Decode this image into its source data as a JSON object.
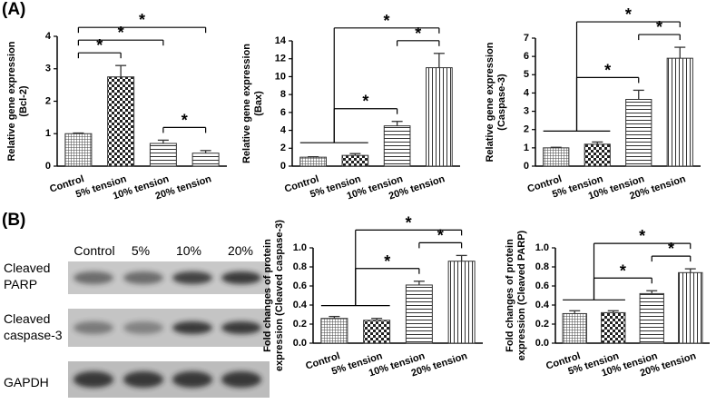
{
  "panels": [
    "(A)",
    "(B)"
  ],
  "blot": {
    "lanes": [
      "Control",
      "5%",
      "10%",
      "20%"
    ],
    "rows": [
      [
        "Cleaved",
        "PARP"
      ],
      [
        "Cleaved",
        "caspase-3"
      ],
      [
        "GAPDH"
      ]
    ]
  },
  "chart_data": [
    {
      "type": "bar",
      "ylabel": [
        "Relative gene expression",
        "(Bcl-2)"
      ],
      "categories": [
        "Control",
        "5% tension",
        "10% tension",
        "20% tension"
      ],
      "values": [
        1.0,
        2.75,
        0.7,
        0.4
      ],
      "errors": [
        0.02,
        0.35,
        0.1,
        0.08
      ],
      "patterns": [
        "grid",
        "checker",
        "hlines",
        "hlines"
      ],
      "color": "#333333",
      "ylim": [
        0,
        4
      ],
      "yticks": [
        0,
        1,
        2,
        3,
        4
      ],
      "comparisons": [
        {
          "from": 2,
          "to": 3,
          "label": "*"
        },
        {
          "from": 0,
          "to": 1,
          "label": "*"
        },
        {
          "from": 0,
          "to": 2,
          "label": "*"
        },
        {
          "from": 0,
          "to": 3,
          "label": "*"
        }
      ]
    },
    {
      "type": "bar",
      "ylabel": [
        "Relative gene expression",
        "(Bax)"
      ],
      "categories": [
        "Control",
        "5% tension",
        "10% tension",
        "20% tension"
      ],
      "values": [
        1.0,
        1.2,
        4.5,
        11.0
      ],
      "errors": [
        0.05,
        0.2,
        0.5,
        1.6
      ],
      "patterns": [
        "grid",
        "checker",
        "hlines",
        "vlines"
      ],
      "color": "#333333",
      "ylim": [
        0,
        14
      ],
      "yticks": [
        0,
        2,
        4,
        6,
        8,
        10,
        12,
        14
      ],
      "comparisons": [
        {
          "from": [
            0,
            1
          ],
          "to": 2,
          "label": "*"
        },
        {
          "from": 2,
          "to": 3,
          "label": "*"
        },
        {
          "from": [
            0,
            1
          ],
          "to": 3,
          "label": "*"
        }
      ]
    },
    {
      "type": "bar",
      "ylabel": [
        "Relative gene expression",
        "(Caspase-3)"
      ],
      "categories": [
        "Control",
        "5% tension",
        "10% tension",
        "20% tension"
      ],
      "values": [
        1.0,
        1.2,
        3.65,
        5.9
      ],
      "errors": [
        0.03,
        0.12,
        0.5,
        0.6
      ],
      "patterns": [
        "grid",
        "checker",
        "hlines",
        "vlines"
      ],
      "color": "#333333",
      "ylim": [
        0,
        7
      ],
      "yticks": [
        0,
        1,
        2,
        3,
        4,
        5,
        6,
        7
      ],
      "comparisons": [
        {
          "from": [
            0,
            1
          ],
          "to": 2,
          "label": "*"
        },
        {
          "from": 2,
          "to": 3,
          "label": "*"
        },
        {
          "from": [
            0,
            1
          ],
          "to": 3,
          "label": "*"
        }
      ]
    },
    {
      "type": "bar",
      "ylabel": [
        "Fold changes of protein",
        "expression (Cleaved caspase-3)"
      ],
      "categories": [
        "Control",
        "5% tension",
        "10% tension",
        "20% tension"
      ],
      "values": [
        0.26,
        0.24,
        0.61,
        0.86
      ],
      "errors": [
        0.02,
        0.02,
        0.04,
        0.06
      ],
      "patterns": [
        "grid",
        "checker",
        "hlines",
        "vlines"
      ],
      "color": "#333333",
      "ylim": [
        0,
        1
      ],
      "yticks": [
        {
          "value": 0,
          "label": "0.0"
        },
        0.2,
        0.4,
        0.6,
        0.8,
        {
          "value": 1,
          "label": "1.0"
        }
      ],
      "comparisons": [
        {
          "from": [
            0,
            1
          ],
          "to": 2,
          "label": "*"
        },
        {
          "from": 2,
          "to": 3,
          "label": "*"
        },
        {
          "from": [
            0,
            1
          ],
          "to": 3,
          "label": "*"
        }
      ]
    },
    {
      "type": "bar",
      "ylabel": [
        "Fold changes of protein",
        "expression (Cleaved PARP)"
      ],
      "categories": [
        "Control",
        "5% tension",
        "10% tension",
        "20% tension"
      ],
      "values": [
        0.31,
        0.32,
        0.52,
        0.74
      ],
      "errors": [
        0.03,
        0.02,
        0.03,
        0.04
      ],
      "patterns": [
        "grid",
        "checker",
        "hlines",
        "vlines"
      ],
      "color": "#333333",
      "ylim": [
        0,
        1
      ],
      "yticks": [
        {
          "value": 0,
          "label": "0.0"
        },
        0.2,
        0.4,
        0.6,
        0.8,
        {
          "value": 1,
          "label": "1.0"
        }
      ],
      "comparisons": [
        {
          "from": [
            0,
            1
          ],
          "to": 2,
          "label": "*"
        },
        {
          "from": 2,
          "to": 3,
          "label": "*"
        },
        {
          "from": [
            0,
            1
          ],
          "to": 3,
          "label": "*"
        }
      ]
    }
  ]
}
